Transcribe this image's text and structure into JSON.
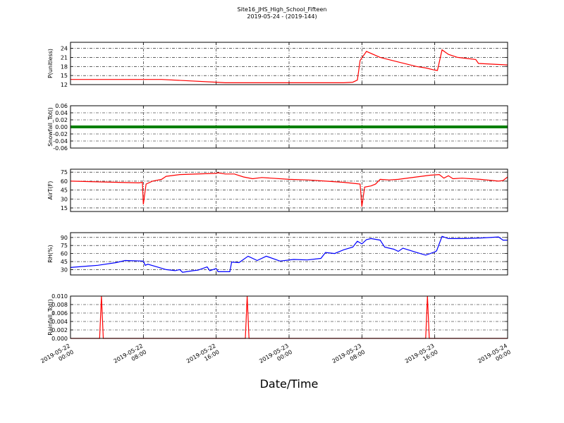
{
  "title": "Site16_JHS_High_School_Fifteen",
  "subtitle": "2019-05-24 - (2019-144)",
  "xlabel": "Date/Time",
  "xlim": [
    "2019-05-22 00:00",
    "2019-05-24 00:00"
  ],
  "xticks": [
    "2019-05-22 00:00",
    "2019-05-22 08:00",
    "2019-05-22 16:00",
    "2019-05-23 00:00",
    "2019-05-23 08:00",
    "2019-05-23 16:00",
    "2019-05-24 00:00"
  ],
  "chart_data": [
    {
      "type": "line",
      "ylabel": "P(unitless)",
      "color": "#ff0000",
      "grid": true,
      "ylim": [
        12,
        26
      ],
      "yticks": [
        12,
        15,
        18,
        21,
        24
      ],
      "x": [
        "2019-05-22 00:00",
        "2019-05-22 10:00",
        "2019-05-22 16:00",
        "2019-05-22 17:00",
        "2019-05-23 06:00",
        "2019-05-23 07:00",
        "2019-05-23 07:30",
        "2019-05-23 07:48",
        "2019-05-23 08:30",
        "2019-05-23 10:00",
        "2019-05-23 12:00",
        "2019-05-23 14:00",
        "2019-05-23 15:00",
        "2019-05-23 16:00",
        "2019-05-23 16:18",
        "2019-05-23 16:48",
        "2019-05-23 17:30",
        "2019-05-23 18:30",
        "2019-05-23 20:00",
        "2019-05-23 20:30",
        "2019-05-23 20:48",
        "2019-05-24 00:00"
      ],
      "values": [
        13.7,
        13.7,
        12.8,
        12.6,
        12.6,
        12.8,
        13.5,
        20,
        23,
        21,
        19.5,
        18,
        17.5,
        16.8,
        16.7,
        23.5,
        22,
        21,
        20.5,
        20.3,
        19,
        18.5
      ]
    },
    {
      "type": "line",
      "ylabel": "Snowfall_Tot()",
      "color": "#008000",
      "grid": true,
      "ylim": [
        -0.06,
        0.06
      ],
      "yticks": [
        -0.06,
        -0.04,
        -0.02,
        {
          "value": 0,
          "label": "0.00"
        },
        0.02,
        0.04,
        0.06
      ],
      "x": [
        "2019-05-22 00:00",
        "2019-05-22 08:00",
        "2019-05-22 16:00",
        "2019-05-23 00:00",
        "2019-05-23 08:00",
        "2019-05-23 16:00",
        "2019-05-24 00:00"
      ],
      "values": [
        0,
        0,
        0,
        0,
        0,
        0,
        0
      ]
    },
    {
      "type": "line",
      "ylabel": "AirT(F)",
      "color": "#ff0000",
      "grid": true,
      "ylim": [
        9,
        80
      ],
      "yticks": [
        15,
        30,
        45,
        60,
        75
      ],
      "x": [
        "2019-05-22 00:00",
        "2019-05-22 07:30",
        "2019-05-22 07:54",
        "2019-05-22 08:00",
        "2019-05-22 08:18",
        "2019-05-22 09:00",
        "2019-05-22 10:00",
        "2019-05-22 10:30",
        "2019-05-22 12:00",
        "2019-05-22 16:00",
        "2019-05-22 16:12",
        "2019-05-22 17:00",
        "2019-05-22 18:00",
        "2019-05-22 19:00",
        "2019-05-22 20:00",
        "2019-05-22 21:00",
        "2019-05-23 00:00",
        "2019-05-23 02:00",
        "2019-05-23 04:00",
        "2019-05-23 06:00",
        "2019-05-23 07:48",
        "2019-05-23 08:00",
        "2019-05-23 08:18",
        "2019-05-23 09:00",
        "2019-05-23 09:30",
        "2019-05-23 10:00",
        "2019-05-23 11:00",
        "2019-05-23 12:00",
        "2019-05-23 14:00",
        "2019-05-23 15:30",
        "2019-05-23 16:30",
        "2019-05-23 17:00",
        "2019-05-23 17:30",
        "2019-05-23 18:00",
        "2019-05-23 19:00",
        "2019-05-23 21:00",
        "2019-05-23 23:00",
        "2019-05-23 23:30",
        "2019-05-24 00:00"
      ],
      "values": [
        60,
        57,
        58,
        21,
        55,
        60,
        63,
        68,
        71,
        73,
        74,
        72,
        72,
        67,
        64,
        66,
        63,
        62,
        60,
        58,
        55,
        17,
        50,
        52,
        55,
        63,
        62,
        63,
        67,
        70,
        71,
        65,
        69,
        64,
        65,
        63,
        60,
        61,
        67
      ]
    },
    {
      "type": "line",
      "ylabel": "RH(%)",
      "color": "#0000ff",
      "grid": true,
      "ylim": [
        20,
        99
      ],
      "yticks": [
        30,
        45,
        60,
        75,
        90
      ],
      "x": [
        "2019-05-22 00:00",
        "2019-05-22 03:00",
        "2019-05-22 05:00",
        "2019-05-22 06:00",
        "2019-05-22 08:00",
        "2019-05-22 08:12",
        "2019-05-22 08:30",
        "2019-05-22 09:30",
        "2019-05-22 10:30",
        "2019-05-22 11:30",
        "2019-05-22 12:00",
        "2019-05-22 12:18",
        "2019-05-22 13:30",
        "2019-05-22 14:00",
        "2019-05-22 15:00",
        "2019-05-22 15:18",
        "2019-05-22 16:00",
        "2019-05-22 16:12",
        "2019-05-22 17:30",
        "2019-05-22 17:42",
        "2019-05-22 18:30",
        "2019-05-22 19:30",
        "2019-05-22 20:30",
        "2019-05-22 21:30",
        "2019-05-22 23:00",
        "2019-05-23 00:30",
        "2019-05-23 02:00",
        "2019-05-23 03:30",
        "2019-05-23 04:00",
        "2019-05-23 05:00",
        "2019-05-23 06:00",
        "2019-05-23 07:00",
        "2019-05-23 07:30",
        "2019-05-23 08:00",
        "2019-05-23 08:30",
        "2019-05-23 09:00",
        "2019-05-23 10:00",
        "2019-05-23 10:30",
        "2019-05-23 11:30",
        "2019-05-23 12:00",
        "2019-05-23 12:30",
        "2019-05-23 14:00",
        "2019-05-23 15:00",
        "2019-05-23 16:00",
        "2019-05-23 16:12",
        "2019-05-23 16:48",
        "2019-05-23 17:30",
        "2019-05-23 19:00",
        "2019-05-23 21:00",
        "2019-05-23 23:00",
        "2019-05-23 23:30",
        "2019-05-24 00:00"
      ],
      "values": [
        34,
        38,
        43,
        47,
        46,
        38,
        40,
        35,
        30,
        28,
        30,
        25,
        28,
        29,
        35,
        28,
        32,
        26,
        26,
        44,
        43,
        55,
        47,
        55,
        46,
        49,
        48,
        51,
        62,
        60,
        67,
        72,
        83,
        78,
        86,
        88,
        85,
        72,
        68,
        64,
        70,
        62,
        57,
        63,
        65,
        92,
        88,
        88,
        89,
        91,
        85,
        85
      ]
    },
    {
      "type": "line",
      "ylabel": "Rainfall_Tot()",
      "color": "#ff0000",
      "grid": true,
      "ylim": [
        0,
        0.01
      ],
      "yticks": [
        {
          "value": 0,
          "label": "0.000"
        },
        0.002,
        0.004,
        0.006,
        0.008,
        {
          "value": 0.01,
          "label": "0.010"
        }
      ],
      "x": [
        "2019-05-22 00:00",
        "2019-05-22 03:12",
        "2019-05-22 03:24",
        "2019-05-22 03:36",
        "2019-05-22 19:12",
        "2019-05-22 19:24",
        "2019-05-22 19:36",
        "2019-05-23 15:00",
        "2019-05-23 15:12",
        "2019-05-23 15:24",
        "2019-05-24 00:00"
      ],
      "values": [
        0,
        0,
        0.01,
        0,
        0,
        0.01,
        0,
        0,
        0.01,
        0,
        0
      ]
    }
  ]
}
